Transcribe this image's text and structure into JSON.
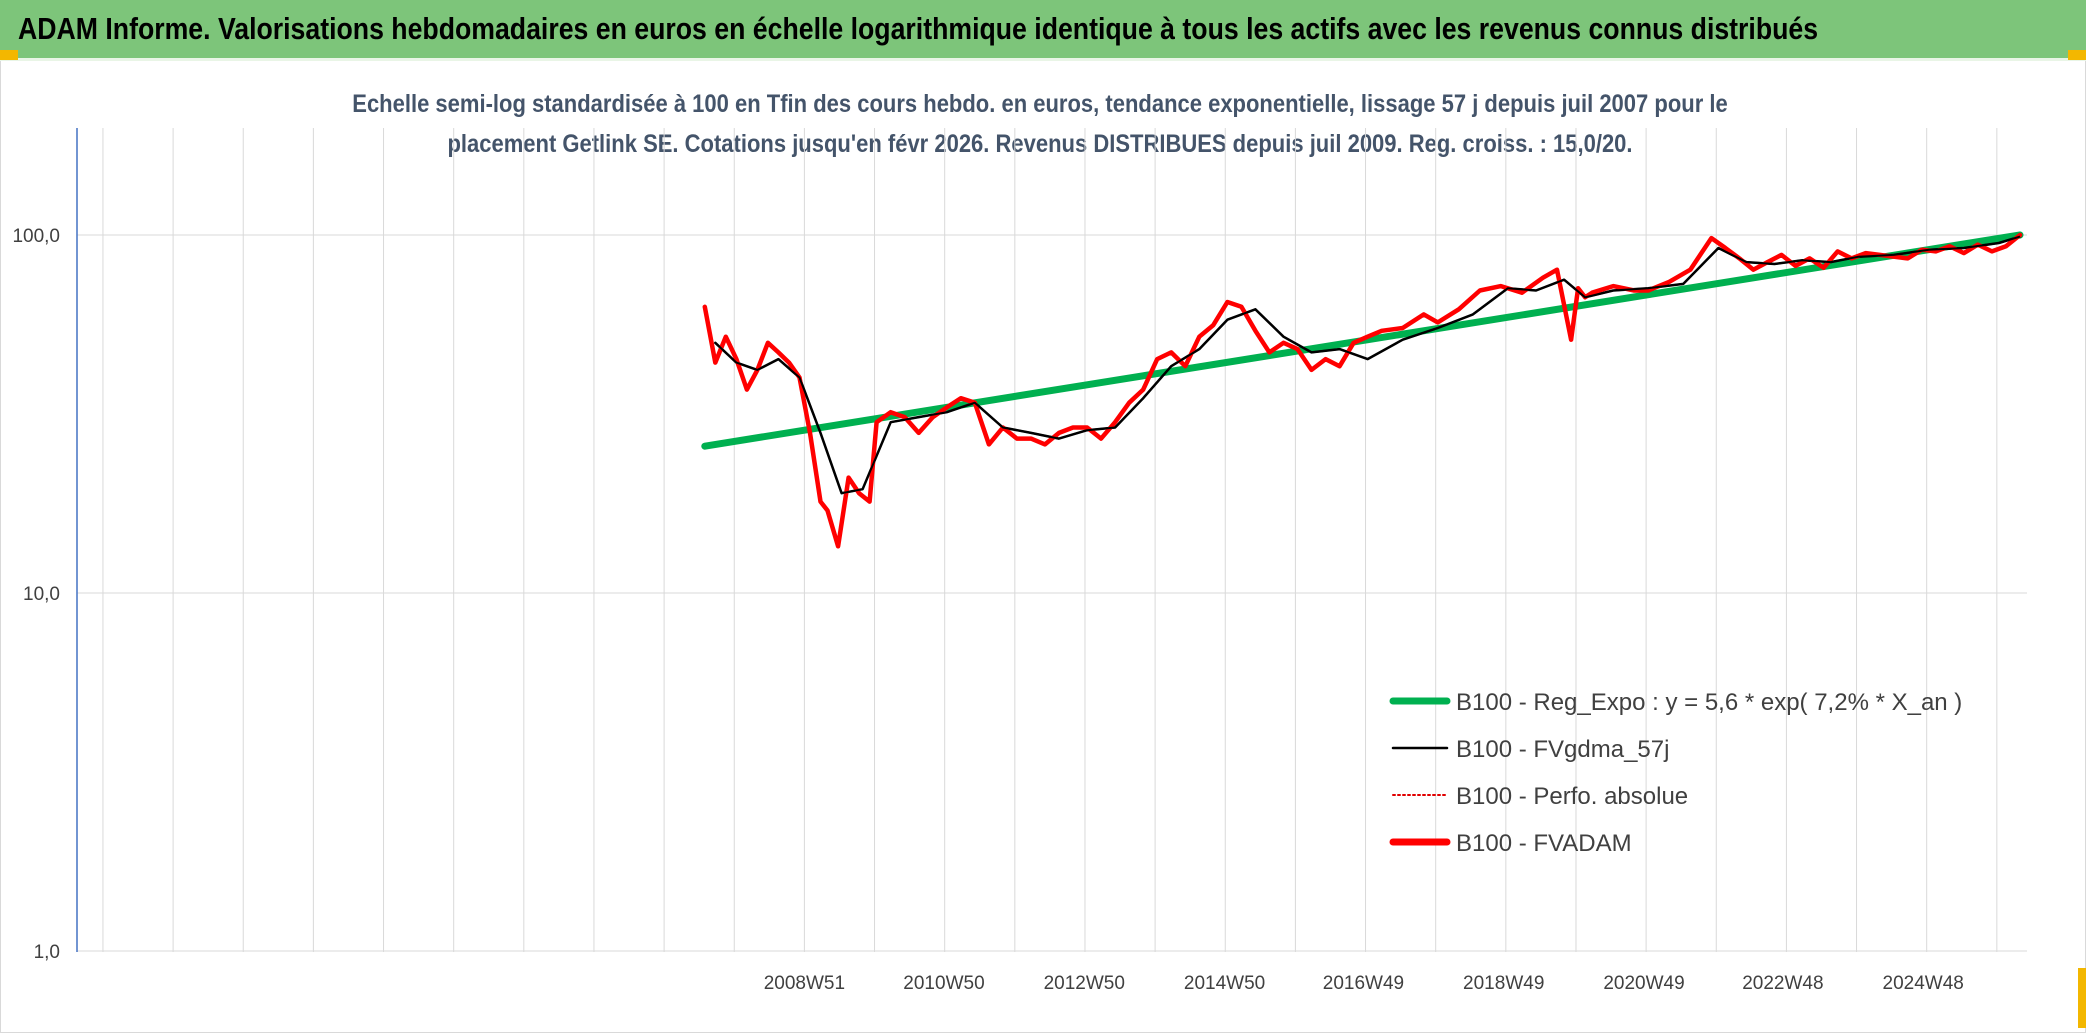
{
  "header": {
    "title": "ADAM Informe. Valorisations hebdomadaires en euros en échelle logarithmique identique à tous les actifs avec les revenus connus distribués",
    "accent_color": "#7dc57a",
    "corner_color": "#f3b700"
  },
  "chart_data": {
    "type": "line",
    "title": "Echelle semi-log standardisée à 100 en Tfin des cours hebdo. en euros, tendance exponentielle, lissage 57 j depuis juil 2007 pour le placement Getlink SE. Cotations jusqu'en févr 2026. Revenus DISTRIBUES depuis juil 2009. Reg. croiss. : 15,0/20.",
    "title_lines": [
      "Echelle semi-log standardisée à 100 en Tfin des cours hebdo. en euros, tendance exponentielle, lissage 57 j depuis juil 2007 pour le",
      "placement Getlink SE. Cotations jusqu'en févr 2026. Revenus DISTRIBUES depuis juil 2009. Reg. croiss. : 15,0/20."
    ],
    "y_scale": "log",
    "ylim": [
      1,
      100
    ],
    "y_ticks": [
      "1,0",
      "10,0",
      "100,0"
    ],
    "xlim": [
      1998.6,
      2026.4
    ],
    "x_ticks": [
      {
        "label": "2008W51",
        "x": 2008.97
      },
      {
        "label": "2010W50",
        "x": 2010.96
      },
      {
        "label": "2012W50",
        "x": 2012.96
      },
      {
        "label": "2014W50",
        "x": 2014.96
      },
      {
        "label": "2016W49",
        "x": 2016.94
      },
      {
        "label": "2018W49",
        "x": 2018.94
      },
      {
        "label": "2020W49",
        "x": 2020.94
      },
      {
        "label": "2022W48",
        "x": 2022.92
      },
      {
        "label": "2024W48",
        "x": 2024.92
      }
    ],
    "grid": {
      "vertical": true,
      "horizontal": true
    },
    "legend_position": "bottom-right",
    "series": [
      {
        "name": "B100 - Reg_Expo : y = 5,6 * exp( 7,2% *  X_an )",
        "color": "#00b050",
        "style": "solid-thick",
        "x": [
          2007.55,
          2026.3
        ],
        "y": [
          25.7,
          100
        ]
      },
      {
        "name": "B100 - FVgdma_57j",
        "color": "#000000",
        "style": "solid",
        "x": [
          2007.7,
          2008.0,
          2008.3,
          2008.6,
          2008.9,
          2009.2,
          2009.5,
          2009.8,
          2010.2,
          2010.6,
          2011.0,
          2011.4,
          2011.8,
          2012.2,
          2012.6,
          2013.0,
          2013.4,
          2013.8,
          2014.2,
          2014.6,
          2015.0,
          2015.4,
          2015.8,
          2016.2,
          2016.6,
          2017.0,
          2017.5,
          2018.0,
          2018.5,
          2019.0,
          2019.4,
          2019.8,
          2020.1,
          2020.5,
          2021.0,
          2021.5,
          2022.0,
          2022.4,
          2022.8,
          2023.2,
          2023.6,
          2024.0,
          2024.5,
          2025.0,
          2025.5,
          2026.0,
          2026.3
        ],
        "y": [
          50,
          44,
          42,
          45,
          40,
          28,
          19,
          19.5,
          30,
          31,
          32,
          34,
          29,
          28,
          27,
          28.5,
          29,
          35,
          43,
          48,
          58,
          62,
          52,
          47,
          48,
          45,
          51,
          55,
          60,
          71,
          70,
          75,
          67,
          70,
          71,
          73,
          92,
          84,
          83,
          85,
          84,
          87,
          88,
          91,
          92,
          95,
          99
        ]
      },
      {
        "name": "B100 - Perfo. absolue",
        "color": "#e00000",
        "style": "dotted",
        "x": [],
        "y": []
      },
      {
        "name": "B100 - FVADAM",
        "color": "#ff0000",
        "style": "solid-thick",
        "x": [
          2007.55,
          2007.7,
          2007.85,
          2008.0,
          2008.15,
          2008.3,
          2008.45,
          2008.6,
          2008.75,
          2008.9,
          2009.05,
          2009.2,
          2009.3,
          2009.45,
          2009.6,
          2009.75,
          2009.9,
          2010.0,
          2010.2,
          2010.4,
          2010.6,
          2010.8,
          2011.0,
          2011.2,
          2011.4,
          2011.6,
          2011.8,
          2012.0,
          2012.2,
          2012.4,
          2012.6,
          2012.8,
          2013.0,
          2013.2,
          2013.4,
          2013.6,
          2013.8,
          2014.0,
          2014.2,
          2014.4,
          2014.6,
          2014.8,
          2015.0,
          2015.2,
          2015.4,
          2015.6,
          2015.8,
          2016.0,
          2016.2,
          2016.4,
          2016.6,
          2016.8,
          2017.0,
          2017.2,
          2017.5,
          2017.8,
          2018.0,
          2018.3,
          2018.6,
          2018.9,
          2019.2,
          2019.5,
          2019.7,
          2019.9,
          2020.0,
          2020.1,
          2020.2,
          2020.5,
          2020.8,
          2021.0,
          2021.3,
          2021.6,
          2021.9,
          2022.1,
          2022.3,
          2022.5,
          2022.7,
          2022.9,
          2023.1,
          2023.3,
          2023.5,
          2023.7,
          2023.9,
          2024.1,
          2024.3,
          2024.5,
          2024.7,
          2024.9,
          2025.1,
          2025.3,
          2025.5,
          2025.7,
          2025.9,
          2026.1,
          2026.3
        ],
        "y": [
          63,
          44,
          52,
          45,
          37,
          42,
          50,
          47,
          44,
          40,
          28,
          18,
          17,
          13.5,
          21,
          19,
          18,
          30,
          32,
          31,
          28,
          31,
          33,
          35,
          34,
          26,
          29,
          27,
          27,
          26,
          28,
          29,
          29,
          27,
          30,
          34,
          37,
          45,
          47,
          43,
          52,
          56,
          65,
          63,
          54,
          47,
          50,
          48,
          42,
          45,
          43,
          50,
          52,
          54,
          55,
          60,
          57,
          62,
          70,
          72,
          69,
          76,
          80,
          51,
          71,
          67,
          69,
          72,
          70,
          70,
          74,
          80,
          98,
          92,
          86,
          80,
          84,
          88,
          82,
          86,
          81,
          90,
          86,
          89,
          88,
          87,
          86,
          91,
          90,
          93,
          89,
          94,
          90,
          93,
          100
        ]
      }
    ]
  }
}
